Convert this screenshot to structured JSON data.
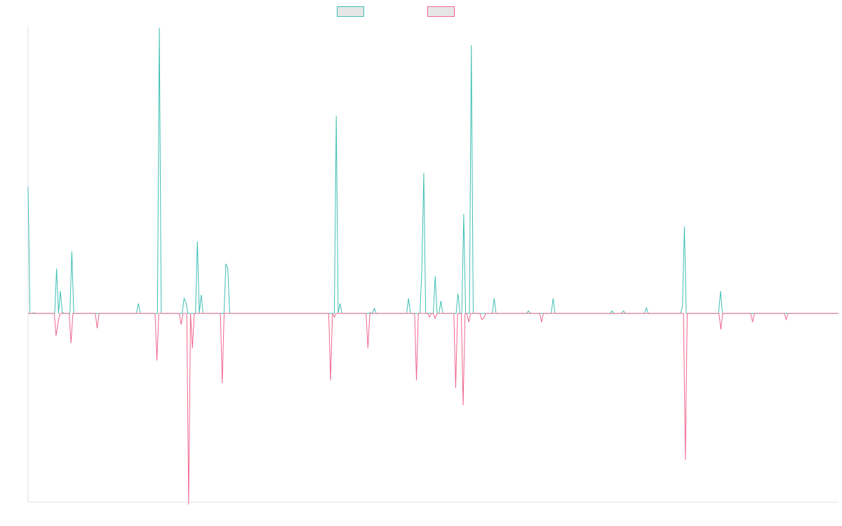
{
  "chart_data": {
    "type": "line",
    "title": "",
    "xlabel": "",
    "ylabel": "",
    "ylim": [
      -1.52,
      2.32
    ],
    "baseline": 0,
    "grid": false,
    "legend": "top-center",
    "series": [
      {
        "name": "",
        "color": "#3fbfb4",
        "fill": "#e6e6e6",
        "values": [
          1.02,
          0,
          0,
          0.005,
          0,
          0,
          0,
          0,
          0,
          0,
          0,
          0,
          0,
          0,
          0,
          0.36,
          0,
          0.18,
          0.01,
          0,
          0,
          0,
          0,
          0.5,
          0,
          0,
          0,
          0,
          0,
          0,
          0,
          0,
          0,
          0,
          0,
          0,
          0,
          0,
          0,
          0,
          0,
          0,
          0,
          0,
          0,
          0,
          0,
          0,
          0,
          0,
          0,
          0,
          0,
          0,
          0,
          0,
          0,
          0,
          0.08,
          0,
          0,
          0,
          0,
          0,
          0,
          0,
          0,
          0,
          0,
          2.3,
          0,
          0,
          0,
          0,
          0,
          0,
          0,
          0,
          0,
          0,
          0,
          0,
          0.12,
          0.09,
          0,
          0,
          0,
          0,
          0,
          0.58,
          0,
          0.15,
          0,
          0,
          0,
          0,
          0,
          0,
          0,
          0,
          0,
          0,
          0,
          0,
          0.4,
          0.36,
          0,
          0,
          0,
          0,
          0,
          0,
          0,
          0,
          0,
          0,
          0,
          0,
          0,
          0,
          0,
          0,
          0,
          0,
          0,
          0,
          0,
          0,
          0,
          0,
          0,
          0,
          0,
          0,
          0,
          0,
          0,
          0,
          0,
          0,
          0,
          0,
          0,
          0,
          0,
          0,
          0,
          0,
          0,
          0,
          0,
          0,
          0,
          0,
          0,
          0,
          0,
          0,
          0,
          0,
          0,
          0,
          1.59,
          0,
          0.08,
          0,
          0,
          0,
          0,
          0,
          0,
          0,
          0,
          0,
          0,
          0,
          0,
          0,
          0,
          0,
          0.005,
          0,
          0.04,
          0,
          0,
          0,
          0,
          0,
          0,
          0,
          0,
          0,
          0,
          0,
          0,
          0,
          0,
          0,
          0,
          0,
          0.12,
          0,
          0,
          0,
          0,
          0,
          0,
          0.36,
          1.13,
          0,
          0,
          0,
          0,
          0,
          0.3,
          0,
          0,
          0.1,
          0,
          0,
          0,
          0,
          0,
          0,
          0,
          0,
          0.16,
          0,
          0,
          0.8,
          0,
          0,
          0,
          2.16,
          0,
          0,
          0,
          0,
          0,
          0,
          0,
          0,
          0,
          0,
          0,
          0.12,
          0,
          0,
          0,
          0,
          0,
          0,
          0,
          0,
          0,
          0,
          0,
          0,
          0,
          0,
          0,
          0,
          0,
          0.02,
          0,
          0,
          0,
          0,
          0,
          0,
          0,
          0,
          0,
          0,
          0,
          0,
          0.12,
          0,
          0,
          0,
          0,
          0,
          0,
          0,
          0,
          0,
          0,
          0,
          0,
          0,
          0,
          0,
          0,
          0,
          0,
          0,
          0,
          0,
          0,
          0,
          0,
          0,
          0,
          0,
          0,
          0,
          0,
          0.02,
          0,
          0,
          0,
          0,
          0,
          0.02,
          0,
          0,
          0,
          0,
          0,
          0,
          0,
          0,
          0,
          0,
          0,
          0.045,
          0,
          0,
          0,
          0,
          0,
          0,
          0,
          0,
          0,
          0,
          0,
          0,
          0,
          0,
          0,
          0,
          0,
          0,
          0.06,
          0.7,
          0,
          0,
          0,
          0,
          0,
          0,
          0,
          0,
          0,
          0,
          0,
          0,
          0,
          0,
          0,
          0,
          0,
          0,
          0.18,
          0,
          0,
          0,
          0,
          0,
          0,
          0,
          0,
          0,
          0,
          0,
          0,
          0,
          0,
          0,
          0,
          0,
          0,
          0,
          0,
          0,
          0,
          0,
          0,
          0,
          0,
          0,
          0,
          0,
          0,
          0,
          0,
          0,
          0,
          0,
          0,
          0,
          0,
          0,
          0,
          0,
          0,
          0,
          0,
          0,
          0,
          0,
          0,
          0,
          0,
          0,
          0,
          0,
          0,
          0,
          0,
          0,
          0,
          0,
          0,
          0,
          0
        ]
      },
      {
        "name": "",
        "color": "#f0668c",
        "fill": "#e6e6e6",
        "values": [
          0,
          0,
          0,
          0,
          0,
          0,
          0,
          0,
          0,
          0,
          0,
          0,
          0,
          0,
          0,
          -0.18,
          -0.08,
          0,
          0,
          0,
          0,
          0,
          0,
          -0.24,
          0,
          0,
          0,
          0,
          0,
          0,
          0,
          0,
          0,
          0,
          0,
          0,
          0,
          -0.12,
          0,
          0,
          0,
          0,
          0,
          0,
          0,
          0,
          0,
          0,
          0,
          0,
          0,
          0,
          0,
          0,
          0,
          0,
          0,
          0,
          0,
          0,
          0,
          0,
          0,
          0,
          0,
          0,
          0,
          0,
          0,
          -0.38,
          0,
          0,
          0,
          0,
          0,
          0,
          0,
          0,
          0,
          0,
          0,
          0,
          -0.09,
          0,
          0,
          0,
          -1.54,
          0,
          -0.28,
          0,
          0,
          0,
          0,
          0,
          0,
          0,
          0,
          0,
          0,
          0,
          0,
          0,
          0,
          0,
          -0.56,
          0,
          0,
          0,
          0,
          0,
          0,
          0,
          0,
          0,
          0,
          0,
          0,
          0,
          0,
          0,
          0,
          0,
          0,
          0,
          0,
          0,
          0,
          0,
          0,
          0,
          0,
          0,
          0,
          0,
          0,
          0,
          0,
          0,
          0,
          0,
          0,
          0,
          0,
          0,
          0,
          0,
          0,
          0,
          0,
          0,
          0,
          0,
          0,
          0,
          0,
          0,
          0,
          0,
          0,
          0,
          0,
          0,
          -0.54,
          0,
          -0.03,
          0,
          0,
          0,
          0,
          0,
          0,
          0,
          0,
          0,
          0,
          0,
          0,
          0,
          0,
          0,
          0,
          0,
          -0.28,
          0,
          0,
          0,
          0,
          0,
          0,
          0,
          0,
          0,
          0,
          0,
          0,
          0,
          0,
          0,
          0,
          0,
          0,
          0,
          0,
          0,
          0,
          0,
          0,
          0,
          -0.54,
          0,
          0,
          0,
          0,
          0,
          0,
          -0.03,
          0,
          0,
          -0.04,
          0,
          0,
          0,
          0,
          0,
          0,
          0,
          0,
          0,
          0,
          -0.6,
          0,
          0,
          0,
          -0.74,
          0,
          0,
          -0.07,
          0,
          0,
          0,
          0,
          0,
          0,
          -0.05,
          -0.04,
          0,
          0,
          0,
          0,
          0,
          0,
          0,
          0,
          0,
          0,
          0,
          0,
          0,
          0,
          0,
          0,
          0,
          0,
          0,
          0,
          0,
          0,
          0,
          0,
          0,
          0,
          0,
          0,
          0,
          0,
          -0.07,
          0,
          0,
          0,
          0,
          0,
          0,
          0,
          0,
          0,
          0,
          0,
          0,
          0,
          0,
          0,
          0,
          0,
          0,
          0,
          0,
          0,
          0,
          0,
          0,
          0,
          0,
          0,
          0,
          0,
          0,
          0,
          0,
          0,
          0,
          0,
          0,
          0,
          0,
          0,
          0,
          0,
          0,
          0,
          0,
          0,
          0,
          0,
          0,
          0,
          0,
          0,
          0,
          0,
          0,
          0,
          0,
          0,
          0,
          0,
          0,
          0,
          0,
          0,
          0,
          0,
          0,
          0,
          0,
          0,
          0,
          0,
          0,
          0,
          0,
          0,
          0,
          -1.18,
          0,
          0,
          0,
          0,
          0,
          0,
          0,
          0,
          0,
          0,
          0,
          0,
          0,
          0,
          0,
          0,
          0,
          0,
          -0.13,
          0,
          0,
          0,
          0,
          0,
          0,
          0,
          0,
          0,
          0,
          0,
          0,
          0,
          0,
          0,
          0,
          -0.07,
          0,
          0,
          0,
          0,
          0,
          0,
          0,
          0,
          0,
          0,
          0,
          0,
          0,
          0,
          0,
          0,
          0,
          -0.05,
          0,
          0,
          0,
          0,
          0,
          0,
          0,
          0,
          0,
          0,
          0,
          0,
          0,
          0,
          0,
          0,
          0,
          0,
          0,
          0,
          0,
          0,
          0,
          0,
          0,
          0,
          0,
          0
        ]
      }
    ]
  }
}
